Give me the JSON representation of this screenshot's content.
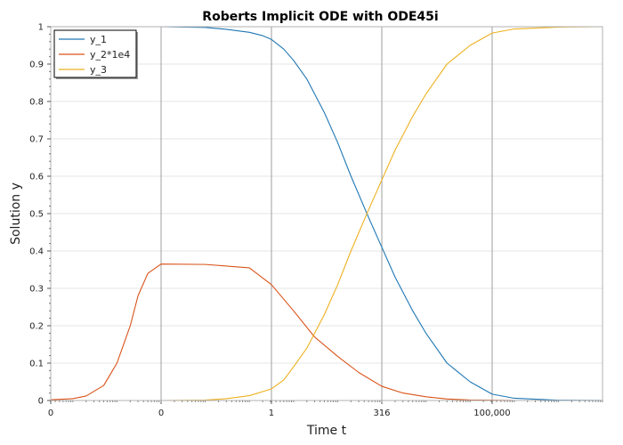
{
  "chart_data": {
    "type": "line",
    "title": "Roberts Implicit ODE with ODE45i",
    "xlabel": "Time t",
    "ylabel": "Solution y",
    "x_scale": "log",
    "x_tick_labels": [
      "0",
      "0",
      "1",
      "316",
      "100,000"
    ],
    "x_tick_values": [
      3.16e-06,
      0.001,
      0.316,
      100,
      31600
    ],
    "xlim": [
      3.16e-06,
      10000000
    ],
    "ylim": [
      0,
      1
    ],
    "y_ticks": [
      0,
      0.1,
      0.2,
      0.3,
      0.4,
      0.5,
      0.6,
      0.7,
      0.8,
      0.9,
      1
    ],
    "y_tick_labels": [
      "0",
      "0.1",
      "0.2",
      "0.3",
      "0.4",
      "0.5",
      "0.6",
      "0.7",
      "0.8",
      "0.9",
      "1"
    ],
    "grid": true,
    "legend_position": "top-left",
    "series": [
      {
        "name": "y_1",
        "color": "#1f77b4",
        "x": [
          3.16e-06,
          0.001,
          0.01,
          0.03,
          0.1,
          0.2,
          0.316,
          0.6,
          1,
          2,
          5,
          10,
          20,
          50,
          100,
          200,
          500,
          1000,
          3000,
          10000,
          31600,
          100000,
          1000000,
          10000000
        ],
        "y": [
          1,
          1,
          0.998,
          0.993,
          0.985,
          0.976,
          0.966,
          0.94,
          0.91,
          0.86,
          0.77,
          0.69,
          0.6,
          0.49,
          0.41,
          0.33,
          0.24,
          0.18,
          0.1,
          0.05,
          0.017,
          0.006,
          0.0008,
          0.0001
        ]
      },
      {
        "name": "y_2*1e4",
        "color": "#d95319",
        "x": [
          3.16e-06,
          1e-05,
          2e-05,
          5e-05,
          0.0001,
          0.0002,
          0.0003,
          0.0005,
          0.001,
          0.01,
          0.1,
          0.316,
          1,
          3,
          10,
          30,
          100,
          300,
          1000,
          3000,
          10000,
          100000
        ],
        "y": [
          0.002,
          0.005,
          0.012,
          0.04,
          0.1,
          0.2,
          0.28,
          0.34,
          0.365,
          0.364,
          0.355,
          0.31,
          0.24,
          0.17,
          0.118,
          0.075,
          0.038,
          0.02,
          0.01,
          0.004,
          0.0015,
          0.0001
        ]
      },
      {
        "name": "y_3",
        "color": "#edb120",
        "x": [
          3.16e-06,
          0.001,
          0.01,
          0.03,
          0.1,
          0.316,
          0.6,
          1,
          2,
          5,
          10,
          20,
          50,
          100,
          200,
          500,
          1000,
          3000,
          10000,
          31600,
          100000,
          1000000,
          10000000
        ],
        "y": [
          0,
          0,
          0.001,
          0.005,
          0.013,
          0.031,
          0.055,
          0.09,
          0.14,
          0.23,
          0.31,
          0.4,
          0.51,
          0.59,
          0.67,
          0.76,
          0.82,
          0.9,
          0.95,
          0.983,
          0.994,
          0.999,
          1
        ]
      }
    ]
  }
}
